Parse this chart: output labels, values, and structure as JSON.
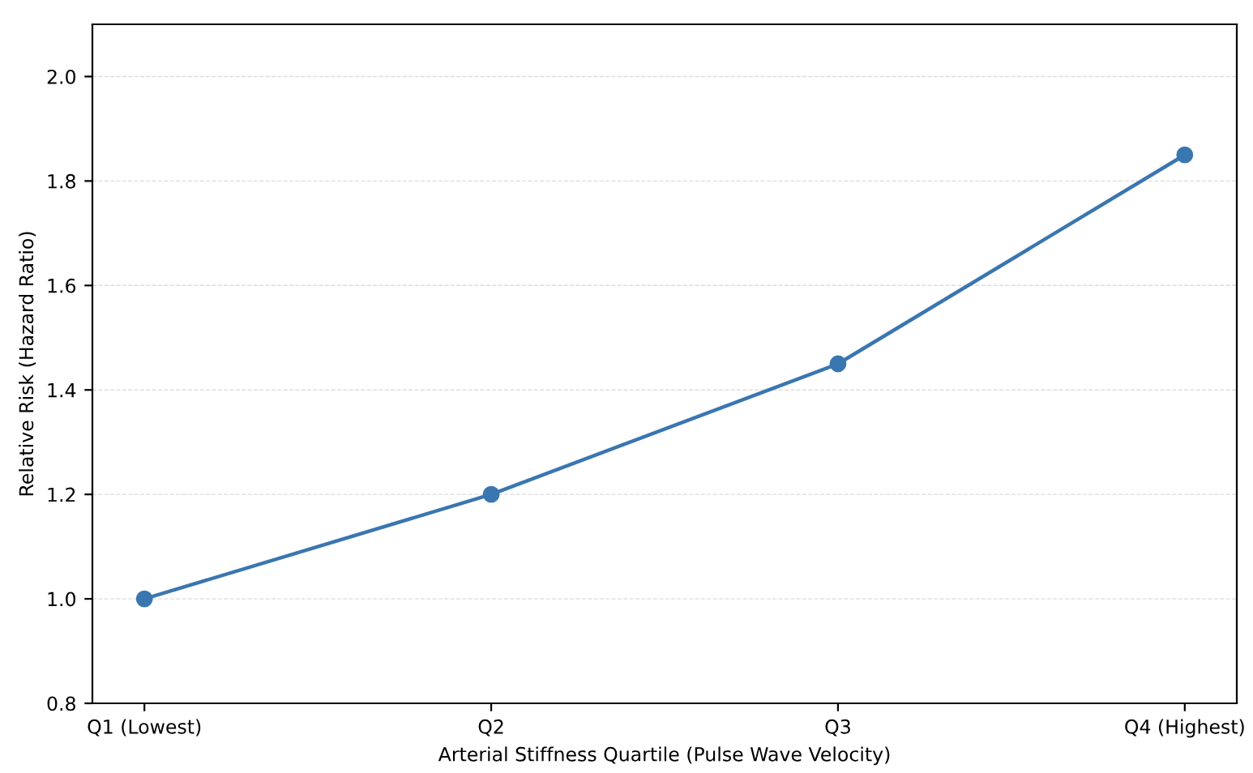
{
  "chart_data": {
    "type": "line",
    "xlabel": "Arterial Stiffness Quartile (Pulse Wave Velocity)",
    "ylabel": "Relative Risk (Hazard Ratio)",
    "categories": [
      "Q1 (Lowest)",
      "Q2",
      "Q3",
      "Q4 (Highest)"
    ],
    "series": [
      {
        "color": "#3a76b0",
        "values": [
          1.0,
          1.2,
          1.45,
          1.85
        ]
      }
    ],
    "ylim": [
      0.8,
      2.1
    ],
    "yticks": [
      {
        "value": 0.8,
        "label": "0.8"
      },
      {
        "value": 1.0,
        "label": "1.0"
      },
      {
        "value": 1.2,
        "label": "1.2"
      },
      {
        "value": 1.4,
        "label": "1.4"
      },
      {
        "value": 1.6,
        "label": "1.6"
      },
      {
        "value": 1.8,
        "label": "1.8"
      },
      {
        "value": 2.0,
        "label": "2.0"
      }
    ],
    "grid": "y",
    "marker": "circle",
    "line_style": "solid"
  }
}
